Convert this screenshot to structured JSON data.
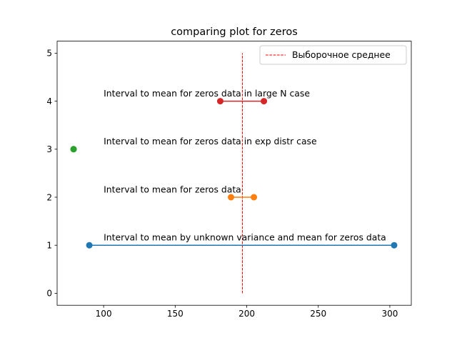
{
  "chart_data": {
    "type": "line",
    "title": "comparing plot for zeros",
    "xlabel": "",
    "ylabel": "",
    "xlim": [
      67.5,
      315
    ],
    "ylim": [
      -0.25,
      5.25
    ],
    "xticks": [
      100,
      150,
      200,
      250,
      300
    ],
    "yticks": [
      0,
      1,
      2,
      3,
      4,
      5
    ],
    "grid": false,
    "legend": {
      "placement": "top-right",
      "entries": [
        "Выборочное среднее"
      ]
    },
    "series": [
      {
        "color": "#1f77b4",
        "x": [
          90,
          303
        ],
        "y": [
          1,
          1
        ]
      },
      {
        "color": "#ff7f0e",
        "x": [
          189,
          205
        ],
        "y": [
          2,
          2
        ]
      },
      {
        "color": "#2ca02c",
        "x": [
          79,
          79
        ],
        "y": [
          3,
          3
        ]
      },
      {
        "color": "#d62728",
        "x": [
          181.5,
          212
        ],
        "y": [
          4,
          4
        ]
      }
    ],
    "reference_line": {
      "name": "Выборочное среднее",
      "orientation": "vertical",
      "x": 197,
      "y_range": [
        0,
        5
      ],
      "style": "dashed",
      "color": "#ff0000"
    },
    "annotations": [
      {
        "text": "Interval to mean by unknown variance and mean for zeros data",
        "x": 100,
        "y": 1.1
      },
      {
        "text": "Interval to mean for zeros data",
        "x": 100,
        "y": 2.1
      },
      {
        "text": "Interval to mean for zeros data in exp distr case",
        "x": 100,
        "y": 3.1
      },
      {
        "text": "Interval to mean for zeros data in large N case",
        "x": 100,
        "y": 4.1
      }
    ]
  }
}
